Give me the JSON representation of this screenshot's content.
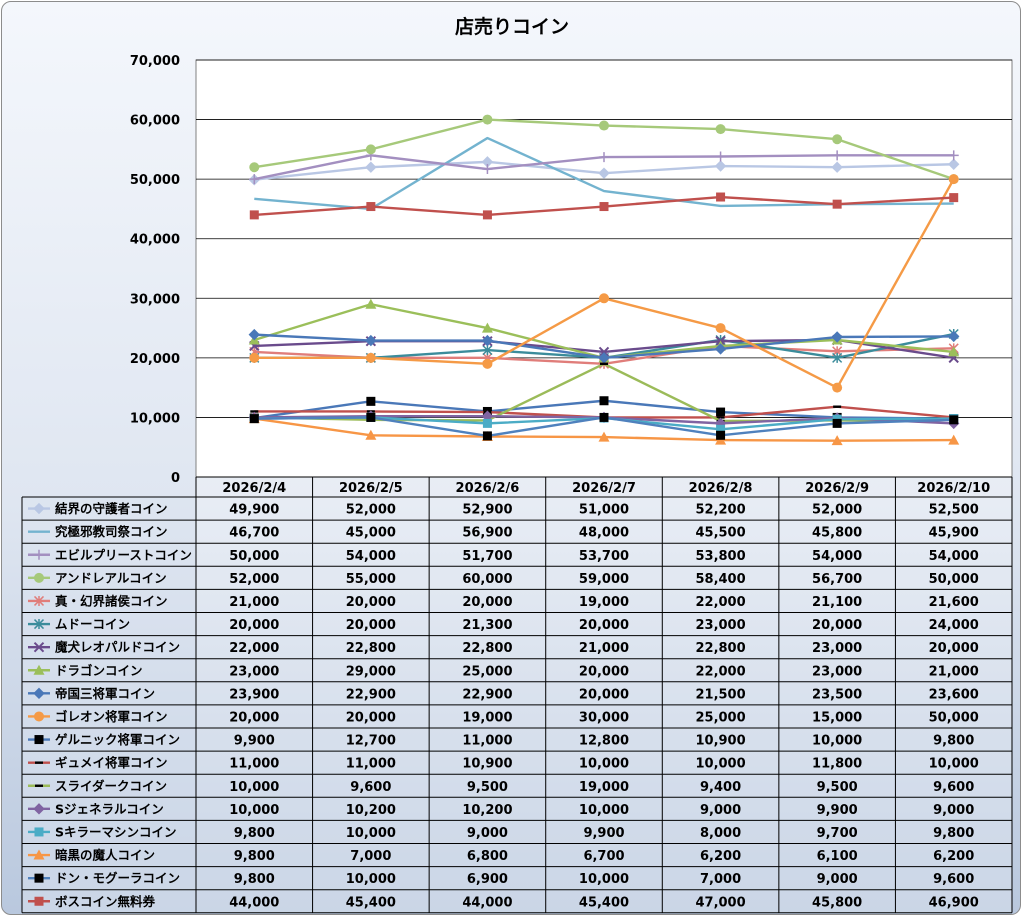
{
  "chart_data": {
    "type": "line",
    "title": "店売りコイン",
    "xlabel": "",
    "ylabel": "",
    "ylim": [
      0,
      70000
    ],
    "yticks": [
      "0",
      "10,000",
      "20,000",
      "30,000",
      "40,000",
      "50,000",
      "60,000",
      "70,000"
    ],
    "grid": true,
    "legend": "data-table",
    "categories": [
      "2026/2/4",
      "2026/2/5",
      "2026/2/6",
      "2026/2/7",
      "2026/2/8",
      "2026/2/9",
      "2026/2/10"
    ],
    "series": [
      {
        "name": "結界の守護者コイン",
        "color": "#b9c7e4",
        "marker": "diamond",
        "values": [
          49900,
          52000,
          52900,
          51000,
          52200,
          52000,
          52500
        ],
        "labels": [
          "49,900",
          "52,000",
          "52,900",
          "51,000",
          "52,200",
          "52,000",
          "52,500"
        ]
      },
      {
        "name": "究極邪教司祭コイン",
        "color": "#73b3cf",
        "marker": "none",
        "values": [
          46700,
          45000,
          56900,
          48000,
          45500,
          45800,
          45900
        ],
        "labels": [
          "46,700",
          "45,000",
          "56,900",
          "48,000",
          "45,500",
          "45,800",
          "45,900"
        ]
      },
      {
        "name": "エビルプリーストコイン",
        "color": "#a38fc0",
        "marker": "plus",
        "values": [
          50000,
          54000,
          51700,
          53700,
          53800,
          54000,
          54000
        ],
        "labels": [
          "50,000",
          "54,000",
          "51,700",
          "53,700",
          "53,800",
          "54,000",
          "54,000"
        ]
      },
      {
        "name": "アンドレアルコイン",
        "color": "#a6c97a",
        "marker": "circle",
        "values": [
          52000,
          55000,
          60000,
          59000,
          58400,
          56700,
          50000
        ],
        "labels": [
          "52,000",
          "55,000",
          "60,000",
          "59,000",
          "58,400",
          "56,700",
          "50,000"
        ]
      },
      {
        "name": "真・幻界諸侯コイン",
        "color": "#e07d7a",
        "marker": "star",
        "values": [
          21000,
          20000,
          20000,
          19000,
          22000,
          21100,
          21600
        ],
        "labels": [
          "21,000",
          "20,000",
          "20,000",
          "19,000",
          "22,000",
          "21,100",
          "21,600"
        ]
      },
      {
        "name": "ムドーコイン",
        "color": "#3b8c9b",
        "marker": "star",
        "values": [
          20000,
          20000,
          21300,
          20000,
          23000,
          20000,
          24000
        ],
        "labels": [
          "20,000",
          "20,000",
          "21,300",
          "20,000",
          "23,000",
          "20,000",
          "24,000"
        ]
      },
      {
        "name": "魔犬レオパルドコイン",
        "color": "#6a4b8c",
        "marker": "x",
        "values": [
          22000,
          22800,
          22800,
          21000,
          22800,
          23000,
          20000
        ],
        "labels": [
          "22,000",
          "22,800",
          "22,800",
          "21,000",
          "22,800",
          "23,000",
          "20,000"
        ]
      },
      {
        "name": "ドラゴンコイン",
        "color": "#9bbf5a",
        "marker": "triangle",
        "values": [
          23000,
          29000,
          25000,
          20000,
          22000,
          23000,
          21000
        ],
        "labels": [
          "23,000",
          "29,000",
          "25,000",
          "20,000",
          "22,000",
          "23,000",
          "21,000"
        ]
      },
      {
        "name": "帝国三将軍コイン",
        "color": "#4a78b8",
        "marker": "diamond",
        "values": [
          23900,
          22900,
          22900,
          20000,
          21500,
          23500,
          23600
        ],
        "labels": [
          "23,900",
          "22,900",
          "22,900",
          "20,000",
          "21,500",
          "23,500",
          "23,600"
        ]
      },
      {
        "name": "ゴレオン将軍コイン",
        "color": "#f59a46",
        "marker": "circle",
        "values": [
          20000,
          20000,
          19000,
          30000,
          25000,
          15000,
          50000
        ],
        "labels": [
          "20,000",
          "20,000",
          "19,000",
          "30,000",
          "25,000",
          "15,000",
          "50,000"
        ]
      },
      {
        "name": "ゲルニック将軍コイン",
        "color": "#4a78b8",
        "marker": "square-black",
        "values": [
          9900,
          12700,
          11000,
          12800,
          10900,
          10000,
          9800
        ],
        "labels": [
          "9,900",
          "12,700",
          "11,000",
          "12,800",
          "10,900",
          "10,000",
          "9,800"
        ]
      },
      {
        "name": "ギュメイ将軍コイン",
        "color": "#c0504d",
        "marker": "dash",
        "values": [
          11000,
          11000,
          10900,
          10000,
          10000,
          11800,
          10000
        ],
        "labels": [
          "11,000",
          "11,000",
          "10,900",
          "10,000",
          "10,000",
          "11,800",
          "10,000"
        ]
      },
      {
        "name": "スライダークコイン",
        "color": "#9bbb59",
        "marker": "dash",
        "values": [
          10000,
          9600,
          9500,
          19000,
          9400,
          9500,
          9600
        ],
        "labels": [
          "10,000",
          "9,600",
          "9,500",
          "19,000",
          "9,400",
          "9,500",
          "9,600"
        ]
      },
      {
        "name": "Sジェネラルコイン",
        "color": "#8064a2",
        "marker": "diamond",
        "values": [
          10000,
          10200,
          10200,
          10000,
          9000,
          9900,
          9000
        ],
        "labels": [
          "10,000",
          "10,200",
          "10,200",
          "10,000",
          "9,000",
          "9,900",
          "9,000"
        ]
      },
      {
        "name": "Sキラーマシンコイン",
        "color": "#4bacc6",
        "marker": "square",
        "values": [
          9800,
          10000,
          9000,
          9900,
          8000,
          9700,
          9800
        ],
        "labels": [
          "9,800",
          "10,000",
          "9,000",
          "9,900",
          "8,000",
          "9,700",
          "9,800"
        ]
      },
      {
        "name": "暗黒の魔人コイン",
        "color": "#f79646",
        "marker": "triangle",
        "values": [
          9800,
          7000,
          6800,
          6700,
          6200,
          6100,
          6200
        ],
        "labels": [
          "9,800",
          "7,000",
          "6,800",
          "6,700",
          "6,200",
          "6,100",
          "6,200"
        ]
      },
      {
        "name": "ドン・モグーラコイン",
        "color": "#4f81bd",
        "marker": "square-black",
        "values": [
          9800,
          10000,
          6900,
          10000,
          7000,
          9000,
          9600
        ],
        "labels": [
          "9,800",
          "10,000",
          "6,900",
          "10,000",
          "7,000",
          "9,000",
          "9,600"
        ]
      },
      {
        "name": "ボスコイン無料券",
        "color": "#c0504d",
        "marker": "square",
        "values": [
          44000,
          45400,
          44000,
          45400,
          47000,
          45800,
          46900
        ],
        "labels": [
          "44,000",
          "45,400",
          "44,000",
          "45,400",
          "47,000",
          "45,800",
          "46,900"
        ]
      }
    ]
  }
}
